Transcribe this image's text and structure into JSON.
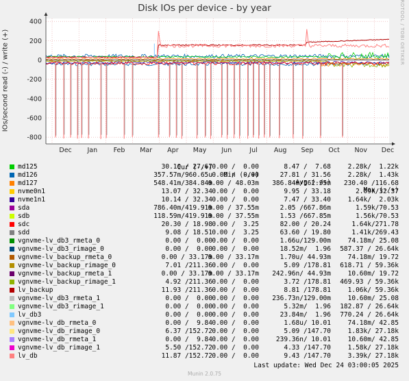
{
  "chart_data": {
    "type": "line",
    "title": "Disk IOs per device - by year",
    "ylabel": "IOs/second read (-) / write (+)",
    "xlabel": "",
    "ylim": [
      -870,
      430
    ],
    "yticks": [
      400,
      200,
      0,
      -200,
      -400,
      -600,
      -800
    ],
    "months": [
      "Dec",
      "Jan",
      "Feb",
      "Mar",
      "Apr",
      "May",
      "Jun",
      "Jul",
      "Aug",
      "Sep",
      "Oct",
      "Nov",
      "Dec"
    ],
    "grid": true,
    "colors": {
      "md125": "#00cc00",
      "md126": "#0066b3",
      "md127": "#ff8000",
      "nvme0n1": "#ffcc00",
      "nvme1n1": "#330099",
      "sda": "#990099",
      "sdb": "#ccff00",
      "sdc": "#ff0000",
      "sdd": "#808080",
      "vg_db3_rmeta_0": "#008f00",
      "vg_db3_rimage_0": "#00487d",
      "vg_backup_rmeta_0": "#b35a00",
      "vg_backup_rimage_0": "#b38f00",
      "vg_backup_rmeta_1": "#6b006b",
      "vg_backup_rimage_1": "#8fb300",
      "lv_backup": "#b30000",
      "vg_db3_rmeta_1": "#bebebe",
      "vg_db3_rimage_1": "#80ff80",
      "lv_db3": "#80c9ff",
      "vg_db_rmeta_0": "#ffc080",
      "vg_db_rimage_0": "#ffe680",
      "vg_db_rmeta_1": "#aa80ff",
      "vg_db_rimage_1": "#ee00cc",
      "lv_db": "#ff8080"
    },
    "series": [
      {
        "name": "md125",
        "write_approx": 40,
        "read_approx": -40
      },
      {
        "name": "md126",
        "write_approx": 40,
        "read_approx": -40
      },
      {
        "name": "md127",
        "write_approx": 10,
        "read_approx": -25
      },
      {
        "name": "lv_backup",
        "write_start": 150,
        "write_end": 210,
        "read_approx": -20
      },
      {
        "name": "lv_db",
        "write_start": 130,
        "write_end": 160,
        "read_approx": -40,
        "read_dips": -810
      }
    ]
  },
  "legend": {
    "headers": {
      "cur": "Cur (-/+)",
      "min": "Min (-/+)",
      "avg": "Avg (-/+)",
      "max": "Max (-/+)"
    },
    "rows": [
      {
        "name": "md125",
        "color": "#00cc00",
        "cur": "30.10 / 27.67",
        "min": "0.00 /  0.00",
        "avg": "8.47 /  7.68",
        "max": "2.28k/  1.22k"
      },
      {
        "name": "md126",
        "color": "#0066b3",
        "cur": "357.57m/960.65u",
        "min": "0.00 /  0.00",
        "avg": "27.81 / 31.56",
        "max": "2.28k/  1.43k"
      },
      {
        "name": "md127",
        "color": "#ff8000",
        "cur": "548.41m/384.84m",
        "min": "0.00 / 48.03m",
        "avg": "386.84m/562.95m",
        "max": "230.40 /116.68"
      },
      {
        "name": "nvme0n1",
        "color": "#ffcc00",
        "cur": "13.07 / 32.34",
        "min": "0.00 /  0.00",
        "avg": "9.95 / 33.18",
        "max": "2.09k/32.37"
      },
      {
        "name": "nvme1n1",
        "color": "#330099",
        "cur": "10.14 / 32.34",
        "min": "0.00 /  0.00",
        "avg": "7.47 / 33.40",
        "max": "1.64k/  2.03k"
      },
      {
        "name": "sda",
        "color": "#990099",
        "cur": "786.40m/419.91m",
        "min": "0.00 / 37.55m",
        "avg": "2.05 /667.86m",
        "max": "1.59k/70.53"
      },
      {
        "name": "sdb",
        "color": "#ccff00",
        "cur": "118.59m/419.91m",
        "min": "0.00 / 37.55m",
        "avg": "1.53 /667.85m",
        "max": "1.56k/70.53"
      },
      {
        "name": "sdc",
        "color": "#ff0000",
        "cur": "20.30 / 18.98",
        "min": "0.00 /  3.25",
        "avg": "82.00 / 20.24",
        "max": "1.64k/271.78"
      },
      {
        "name": "sdd",
        "color": "#808080",
        "cur": "9.08 / 18.51",
        "min": "0.00 /  3.25",
        "avg": "63.60 / 19.80",
        "max": "1.41k/269.43"
      },
      {
        "name": "vgnvme-lv_db3_rmeta_0",
        "color": "#008f00",
        "cur": "0.00 /  0.00",
        "min": "0.00 /  0.00",
        "avg": "1.66u/129.00m",
        "max": "74.18m/ 25.08"
      },
      {
        "name": "vgnvme-lv_db3_rimage_0",
        "color": "#00487d",
        "cur": "0.00 /  0.00",
        "min": "0.00 /  0.00",
        "avg": "18.52m/  1.96",
        "max": "587.37 / 26.64k"
      },
      {
        "name": "vgnvme-lv_backup_rmeta_0",
        "color": "#b35a00",
        "cur": "0.00 / 33.17m",
        "min": "0.00 / 33.17m",
        "avg": "1.70u/ 44.93m",
        "max": "74.18m/ 19.72"
      },
      {
        "name": "vgnvme-lv_backup_rimage_0",
        "color": "#b38f00",
        "cur": "7.01 /211.36",
        "min": "0.00 /  0.00",
        "avg": "5.09 /178.81",
        "max": "618.71 / 59.36k"
      },
      {
        "name": "vgnvme-lv_backup_rmeta_1",
        "color": "#6b006b",
        "cur": "0.00 / 33.17m",
        "min": "0.00 / 33.17m",
        "avg": "242.96n/ 44.93m",
        "max": "10.60m/ 19.72"
      },
      {
        "name": "vgnvme-lv_backup_rimage_1",
        "color": "#8fb300",
        "cur": "4.92 /211.36",
        "min": "0.00 /  0.00",
        "avg": "3.72 /178.81",
        "max": "469.93 / 59.36k"
      },
      {
        "name": "lv_backup",
        "color": "#b30000",
        "cur": "11.93 /211.36",
        "min": "0.00 /  0.00",
        "avg": "8.81 /178.81",
        "max": "1.06k/ 59.36k"
      },
      {
        "name": "vgnvme-lv_db3_rmeta_1",
        "color": "#bebebe",
        "cur": "0.00 /  0.00",
        "min": "0.00 /  0.00",
        "avg": "236.73n/129.00m",
        "max": "10.60m/ 25.08"
      },
      {
        "name": "vgnvme-lv_db3_rimage_1",
        "color": "#80ff80",
        "cur": "0.00 /  0.00",
        "min": "0.00 /  0.00",
        "avg": "5.32m/  1.96",
        "max": "182.87 / 26.64k"
      },
      {
        "name": "lv_db3",
        "color": "#80c9ff",
        "cur": "0.00 /  0.00",
        "min": "0.00 /  0.00",
        "avg": "23.84m/  1.96",
        "max": "770.24 / 26.64k"
      },
      {
        "name": "vgnvme-lv_db_rmeta_0",
        "color": "#ffc080",
        "cur": "0.00 /  9.84",
        "min": "0.00 /  0.00",
        "avg": "1.68u/ 10.01",
        "max": "74.18m/ 42.85"
      },
      {
        "name": "vgnvme-lv_db_rimage_0",
        "color": "#ffe680",
        "cur": "6.37 /152.72",
        "min": "0.00 /  0.00",
        "avg": "5.09 /147.70",
        "max": "1.83k/ 27.18k"
      },
      {
        "name": "vgnvme-lv_db_rmeta_1",
        "color": "#aa80ff",
        "cur": "0.00 /  9.84",
        "min": "0.00 /  0.00",
        "avg": "239.36n/ 10.01",
        "max": "10.60m/ 42.85"
      },
      {
        "name": "vgnvme-lv_db_rimage_1",
        "color": "#ee00cc",
        "cur": "5.50 /152.72",
        "min": "0.00 /  0.00",
        "avg": "4.33 /147.70",
        "max": "1.58k/ 27.18k"
      },
      {
        "name": "lv_db",
        "color": "#ff8080",
        "cur": "11.87 /152.72",
        "min": "0.00 /  0.00",
        "avg": "9.43 /147.70",
        "max": "3.39k/ 27.18k"
      }
    ]
  },
  "footer": {
    "last_update": "Last update: Wed Dec 24 03:00:05 2025",
    "munin": "Munin 2.0.75"
  },
  "sideways_text": "RRDTOOL / TOBI OETIKER"
}
